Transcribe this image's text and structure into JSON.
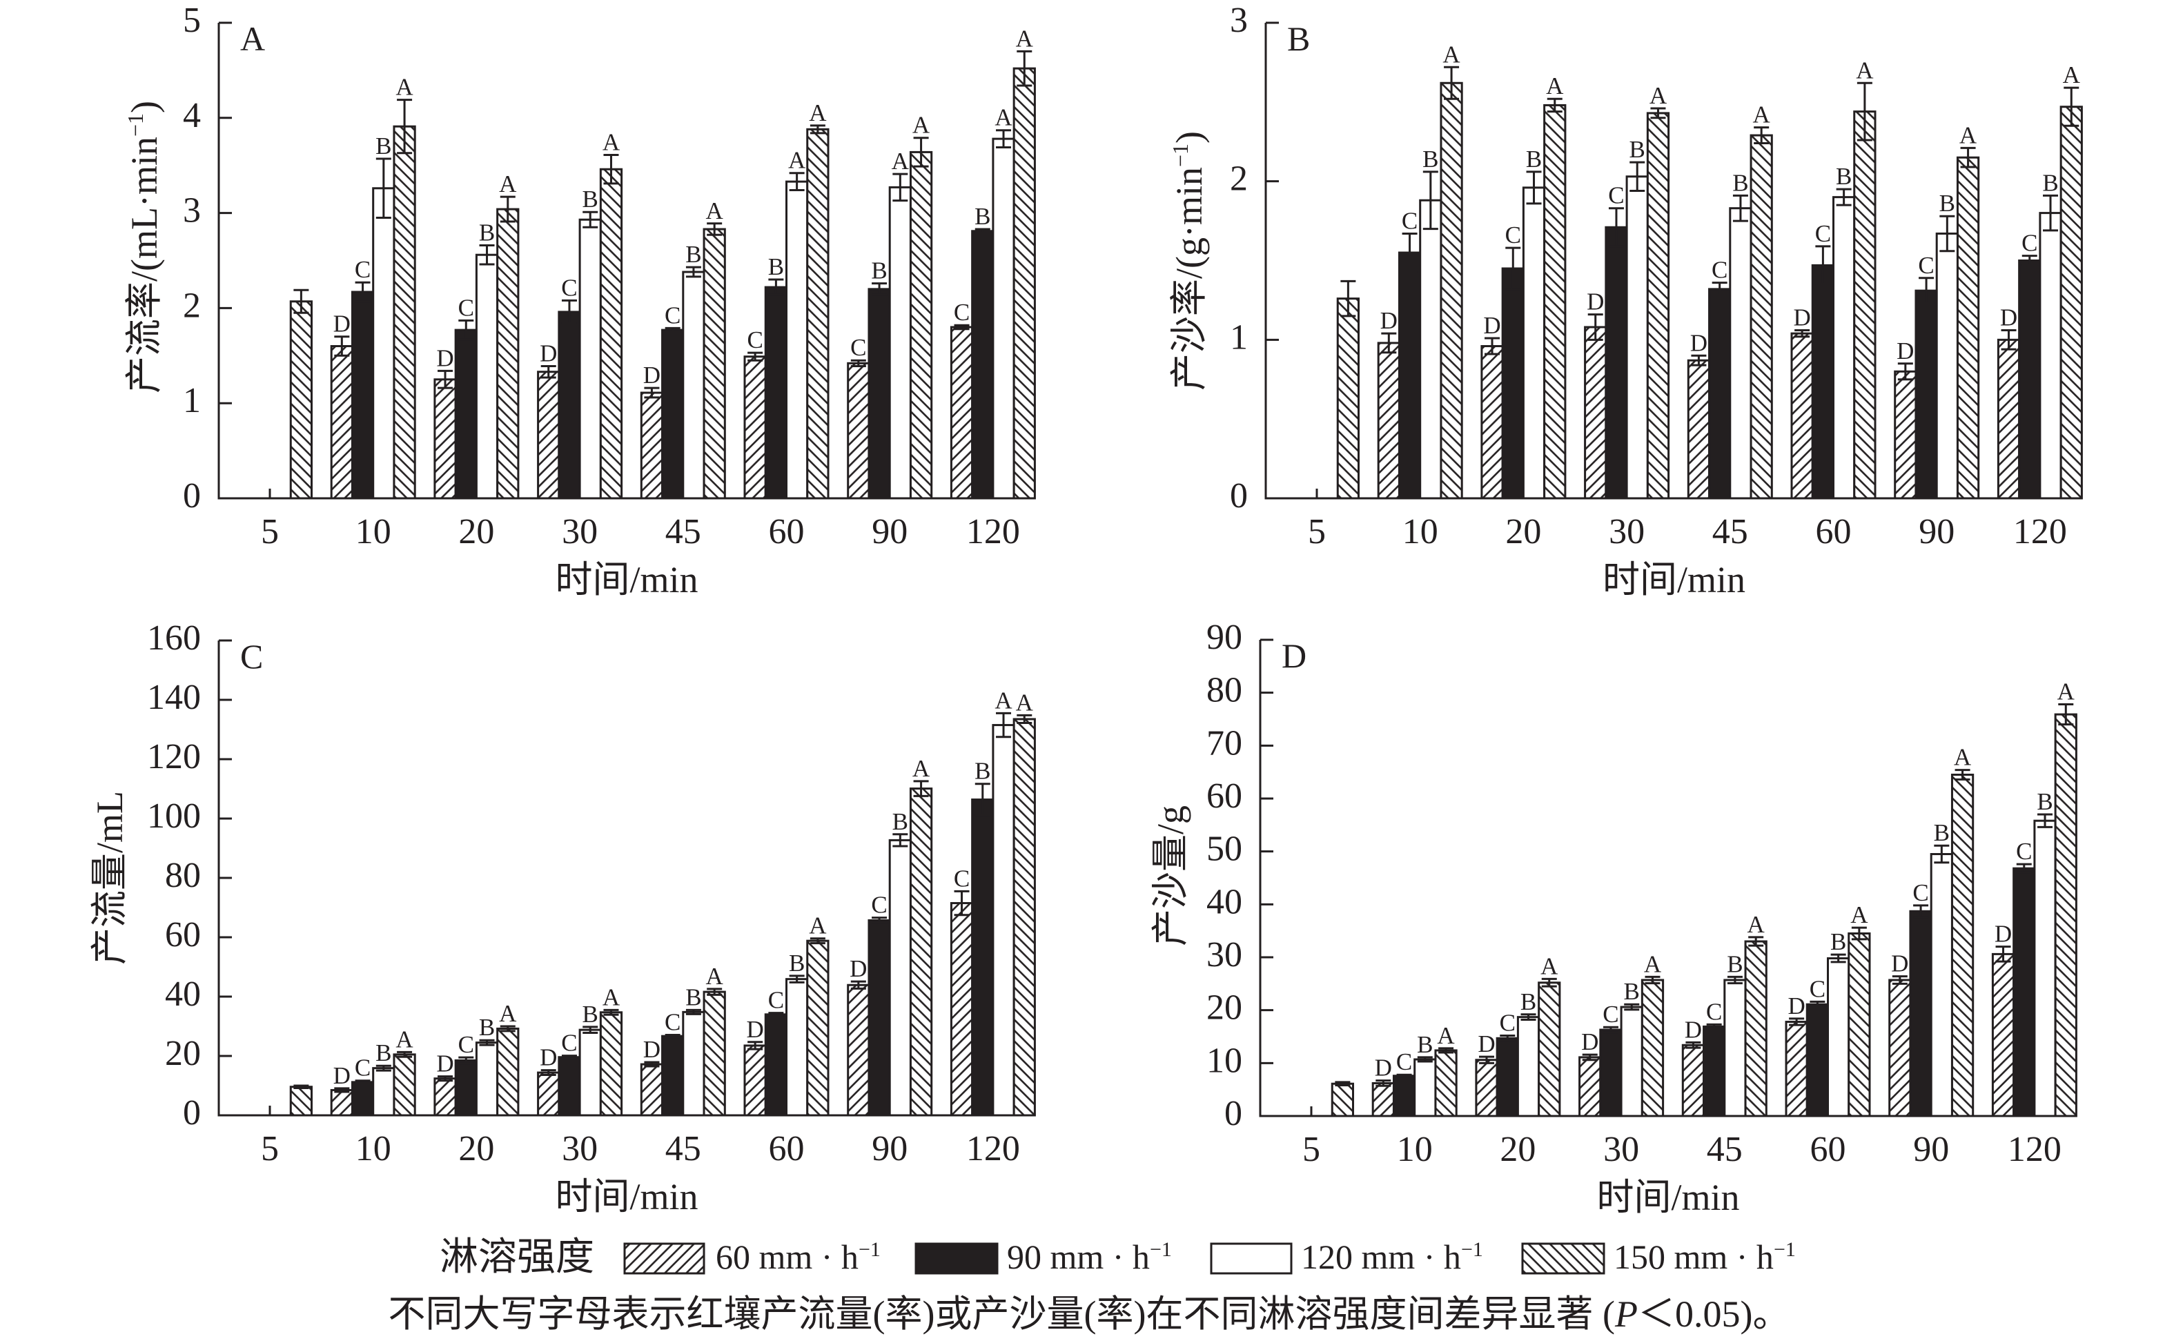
{
  "figure": {
    "legend": {
      "title": "淋溶强度",
      "items": [
        {
          "label": "60 mm · h",
          "superscript": "−1",
          "fill": "hatch-forward"
        },
        {
          "label": "90 mm · h",
          "superscript": "−1",
          "fill": "#231f20"
        },
        {
          "label": "120 mm · h",
          "superscript": "−1",
          "fill": "#ffffff"
        },
        {
          "label": "150 mm · h",
          "superscript": "−1",
          "fill": "hatch-backward"
        }
      ]
    },
    "caption": {
      "before": "不同大写字母表示红壤产流量(率)或产沙量(率)在不同淋溶强度间差异显著 (",
      "italic": "P",
      "after": "＜0.05)。"
    }
  },
  "chart_data": [
    {
      "type": "bar",
      "panel": "A",
      "title": "",
      "xlabel": "时间/min",
      "ylabel": {
        "text": "产流率/(mL·min",
        "superscript": "−1",
        "suffix": ")"
      },
      "ylim": [
        0,
        5
      ],
      "yticks": [
        0,
        1,
        2,
        3,
        4,
        5
      ],
      "grid": false,
      "legend": "bottom",
      "categories": [
        "5",
        "10",
        "20",
        "30",
        "45",
        "60",
        "90",
        "120"
      ],
      "series": [
        {
          "name": "60 mm·h⁻¹",
          "fill": "hatch-forward",
          "values": [
            null,
            1.6,
            1.25,
            1.33,
            1.11,
            1.49,
            1.42,
            1.8
          ],
          "errors": [
            null,
            0.1,
            0.09,
            0.06,
            0.05,
            0.04,
            0.03,
            0.02
          ],
          "letters": [
            null,
            "D",
            "D",
            "D",
            "D",
            "C",
            "C",
            "C"
          ]
        },
        {
          "name": "90 mm·h⁻¹",
          "fill": "#231f20",
          "values": [
            null,
            2.17,
            1.77,
            1.96,
            1.77,
            2.22,
            2.2,
            2.81
          ],
          "errors": [
            null,
            0.1,
            0.1,
            0.12,
            0.02,
            0.08,
            0.06,
            0.02
          ],
          "letters": [
            null,
            "C",
            "C",
            "C",
            "C",
            "B",
            "B",
            "B"
          ]
        },
        {
          "name": "120 mm·h⁻¹",
          "fill": "#ffffff",
          "values": [
            null,
            3.26,
            2.56,
            2.93,
            2.38,
            3.33,
            3.27,
            3.78
          ],
          "errors": [
            null,
            0.31,
            0.1,
            0.08,
            0.05,
            0.09,
            0.14,
            0.09
          ],
          "letters": [
            null,
            "B",
            "B",
            "B",
            "B",
            "A",
            "A",
            "A"
          ]
        },
        {
          "name": "150 mm·h⁻¹",
          "fill": "hatch-backward",
          "values": [
            2.07,
            3.91,
            3.04,
            3.46,
            2.83,
            3.88,
            3.64,
            4.52
          ],
          "errors": [
            0.12,
            0.28,
            0.13,
            0.15,
            0.06,
            0.04,
            0.15,
            0.18
          ],
          "letters": [
            null,
            "A",
            "A",
            "A",
            "A",
            "A",
            "A",
            "A"
          ]
        }
      ]
    },
    {
      "type": "bar",
      "panel": "B",
      "title": "",
      "xlabel": "时间/min",
      "ylabel": {
        "text": "产沙率/(g·min",
        "superscript": "−1",
        "suffix": ")"
      },
      "ylim": [
        0,
        3
      ],
      "yticks": [
        0,
        1,
        2,
        3
      ],
      "grid": false,
      "legend": "bottom",
      "categories": [
        "5",
        "10",
        "20",
        "30",
        "45",
        "60",
        "90",
        "120"
      ],
      "series": [
        {
          "name": "60 mm·h⁻¹",
          "fill": "hatch-forward",
          "values": [
            null,
            0.98,
            0.96,
            1.08,
            0.87,
            1.04,
            0.8,
            1.0
          ],
          "errors": [
            null,
            0.06,
            0.05,
            0.08,
            0.03,
            0.02,
            0.05,
            0.06
          ],
          "letters": [
            null,
            "D",
            "D",
            "D",
            "D",
            "D",
            "D",
            "D"
          ]
        },
        {
          "name": "90 mm·h⁻¹",
          "fill": "#231f20",
          "values": [
            null,
            1.55,
            1.45,
            1.71,
            1.32,
            1.47,
            1.31,
            1.5
          ],
          "errors": [
            null,
            0.12,
            0.13,
            0.12,
            0.04,
            0.12,
            0.08,
            0.03
          ],
          "letters": [
            null,
            "C",
            "C",
            "C",
            "C",
            "C",
            "C",
            "C"
          ]
        },
        {
          "name": "120 mm·h⁻¹",
          "fill": "#ffffff",
          "values": [
            null,
            1.88,
            1.96,
            2.03,
            1.83,
            1.9,
            1.67,
            1.8
          ],
          "errors": [
            null,
            0.18,
            0.1,
            0.09,
            0.08,
            0.05,
            0.11,
            0.11
          ],
          "letters": [
            null,
            "B",
            "B",
            "B",
            "B",
            "B",
            "B",
            "B"
          ]
        },
        {
          "name": "150 mm·h⁻¹",
          "fill": "hatch-backward",
          "values": [
            1.26,
            2.62,
            2.48,
            2.43,
            2.29,
            2.44,
            2.15,
            2.47
          ],
          "errors": [
            0.11,
            0.1,
            0.04,
            0.03,
            0.05,
            0.18,
            0.06,
            0.12
          ],
          "letters": [
            null,
            "A",
            "A",
            "A",
            "A",
            "A",
            "A",
            "A"
          ]
        }
      ]
    },
    {
      "type": "bar",
      "panel": "C",
      "title": "",
      "xlabel": "时间/min",
      "ylabel": {
        "text": "产流量/mL"
      },
      "ylim": [
        0,
        160
      ],
      "yticks": [
        0,
        20,
        40,
        60,
        80,
        100,
        120,
        140,
        160
      ],
      "grid": false,
      "legend": "bottom",
      "categories": [
        "5",
        "10",
        "20",
        "30",
        "45",
        "60",
        "90",
        "120"
      ],
      "series": [
        {
          "name": "60 mm·h⁻¹",
          "fill": "hatch-forward",
          "values": [
            null,
            8.5,
            12.4,
            14.4,
            17.2,
            23.5,
            43.9,
            71.5
          ],
          "errors": [
            null,
            0.6,
            0.7,
            0.8,
            0.7,
            1.2,
            1.2,
            4.0
          ],
          "letters": [
            null,
            "D",
            "D",
            "D",
            "D",
            "D",
            "D",
            "C"
          ]
        },
        {
          "name": "90 mm·h⁻¹",
          "fill": "#231f20",
          "values": [
            null,
            11.2,
            18.5,
            19.6,
            26.7,
            34.0,
            65.7,
            106.4
          ],
          "errors": [
            null,
            0.5,
            1.0,
            0.5,
            0.4,
            0.5,
            0.9,
            5.3
          ],
          "letters": [
            null,
            "C",
            "C",
            "C",
            "C",
            "C",
            "C",
            "B"
          ]
        },
        {
          "name": "120 mm·h⁻¹",
          "fill": "#ffffff",
          "values": [
            null,
            15.9,
            24.5,
            28.8,
            34.8,
            45.9,
            92.7,
            131.5
          ],
          "errors": [
            null,
            0.8,
            0.8,
            1.0,
            0.7,
            1.1,
            2.0,
            4.0
          ],
          "letters": [
            null,
            "B",
            "B",
            "B",
            "B",
            "B",
            "B",
            "A"
          ]
        },
        {
          "name": "150 mm·h⁻¹",
          "fill": "hatch-backward",
          "values": [
            9.6,
            20.5,
            29.2,
            34.7,
            41.6,
            58.8,
            110.1,
            133.5
          ],
          "errors": [
            0.4,
            0.8,
            0.8,
            0.8,
            1.0,
            0.8,
            2.5,
            1.3
          ],
          "letters": [
            null,
            "A",
            "A",
            "A",
            "A",
            "A",
            "A",
            "A"
          ]
        }
      ]
    },
    {
      "type": "bar",
      "panel": "D",
      "title": "",
      "xlabel": "时间/min",
      "ylabel": {
        "text": "产沙量/g"
      },
      "ylim": [
        0,
        90
      ],
      "yticks": [
        0,
        10,
        20,
        30,
        40,
        50,
        60,
        70,
        80,
        90
      ],
      "grid": false,
      "legend": "bottom",
      "categories": [
        "5",
        "10",
        "20",
        "30",
        "45",
        "60",
        "90",
        "120"
      ],
      "series": [
        {
          "name": "60 mm·h⁻¹",
          "fill": "hatch-forward",
          "values": [
            null,
            6.2,
            10.6,
            11.1,
            13.4,
            17.8,
            25.7,
            30.6
          ],
          "errors": [
            null,
            0.5,
            0.6,
            0.5,
            0.5,
            0.6,
            0.7,
            1.4
          ],
          "letters": [
            null,
            "D",
            "D",
            "D",
            "D",
            "D",
            "D",
            "D"
          ]
        },
        {
          "name": "90 mm·h⁻¹",
          "fill": "#231f20",
          "values": [
            null,
            7.6,
            14.7,
            16.3,
            16.9,
            21.1,
            38.7,
            46.8
          ],
          "errors": [
            null,
            0.2,
            0.5,
            0.5,
            0.4,
            0.5,
            1.1,
            0.8
          ],
          "letters": [
            null,
            "C",
            "C",
            "C",
            "C",
            "C",
            "C",
            "C"
          ]
        },
        {
          "name": "120 mm·h⁻¹",
          "fill": "#ffffff",
          "values": [
            null,
            10.7,
            18.7,
            20.6,
            25.7,
            29.8,
            49.5,
            55.8
          ],
          "errors": [
            null,
            0.4,
            0.5,
            0.5,
            0.6,
            0.7,
            1.6,
            1.2
          ],
          "letters": [
            null,
            "B",
            "B",
            "B",
            "B",
            "B",
            "B",
            "B"
          ]
        },
        {
          "name": "150 mm·h⁻¹",
          "fill": "hatch-backward",
          "values": [
            6.1,
            12.4,
            25.2,
            25.7,
            33.0,
            34.5,
            64.5,
            75.9
          ],
          "errors": [
            0.3,
            0.4,
            0.7,
            0.6,
            0.8,
            1.1,
            0.9,
            1.9
          ],
          "letters": [
            null,
            "A",
            "A",
            "A",
            "A",
            "A",
            "A",
            "A"
          ]
        }
      ]
    }
  ]
}
